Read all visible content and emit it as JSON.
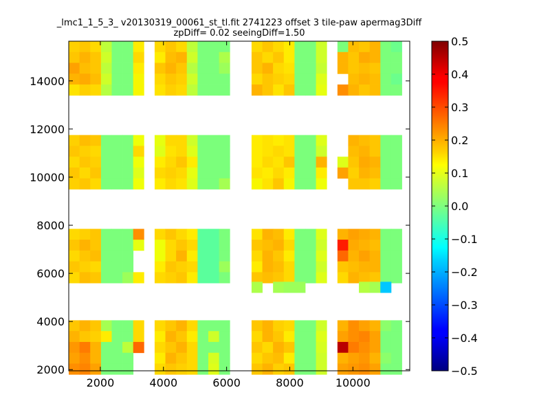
{
  "chart_data": {
    "type": "heatmap",
    "title": "_lmc1_1_5_3_ v20130319_00061_st_tl.fit 2741223 offset 3 tile-paw apermag3Diff",
    "subtitle": "zpDiff= 0.02 seeingDiff=1.50",
    "xlabel": "",
    "ylabel": "",
    "xlim": [
      1000,
      11800
    ],
    "ylim": [
      1950,
      15650
    ],
    "x_ticks": [
      "2000",
      "4000",
      "6000",
      "8000",
      "10000"
    ],
    "y_ticks": [
      "2000",
      "4000",
      "6000",
      "8000",
      "10000",
      "12000",
      "14000"
    ],
    "colorbar": {
      "colormap": "jet",
      "vmin": -0.5,
      "vmax": 0.5,
      "ticks": [
        "0.5",
        "0.4",
        "0.3",
        "0.2",
        "0.1",
        "0.0",
        "−0.1",
        "−0.2",
        "−0.3",
        "−0.4",
        "−0.5"
      ]
    },
    "cell_size": [
      340,
      450
    ],
    "x_cells": [
      1170,
      1510,
      1850,
      2190,
      2530,
      2870,
      3210,
      3890,
      4230,
      4570,
      4910,
      5250,
      5590,
      5930,
      6960,
      7300,
      7640,
      7980,
      8320,
      8660,
      9000,
      9680,
      10020,
      10360,
      10700,
      11040,
      11380
    ],
    "grid": [
      {
        "y": 15425,
        "values": [
          0.19,
          0.2,
          0.18,
          0.08,
          0.0,
          0.0,
          0.16,
          0.18,
          0.2,
          0.18,
          0.08,
          0.0,
          0.0,
          0.0,
          0.18,
          0.2,
          0.18,
          0.16,
          0.0,
          0.0,
          0.1,
          0.0,
          0.21,
          0.2,
          0.22,
          0.0,
          -0.02
        ]
      },
      {
        "y": 14975,
        "values": [
          0.2,
          0.22,
          0.2,
          0.1,
          0.0,
          0.0,
          0.18,
          0.16,
          0.21,
          0.22,
          0.1,
          0.0,
          0.0,
          0.06,
          0.2,
          0.18,
          0.2,
          0.16,
          0.0,
          0.0,
          0.1,
          0.22,
          0.2,
          0.23,
          0.22,
          0.0,
          0.0
        ]
      },
      {
        "y": 14525,
        "values": [
          0.24,
          0.21,
          0.2,
          0.08,
          0.0,
          0.0,
          0.16,
          0.2,
          0.22,
          0.2,
          0.07,
          0.0,
          0.0,
          0.04,
          0.2,
          0.22,
          0.18,
          0.17,
          0.0,
          0.0,
          0.09,
          0.22,
          0.2,
          0.21,
          0.2,
          0.0,
          0.0
        ]
      },
      {
        "y": 14075,
        "values": [
          0.22,
          0.23,
          0.21,
          0.1,
          0.0,
          0.0,
          0.15,
          0.18,
          0.2,
          0.19,
          0.1,
          0.0,
          0.0,
          0.0,
          0.18,
          0.2,
          0.19,
          0.18,
          0.0,
          0.0,
          0.12,
          null,
          0.21,
          0.22,
          0.21,
          0.0,
          -0.02
        ]
      },
      {
        "y": 13625,
        "values": [
          0.17,
          0.19,
          0.18,
          0.07,
          0.0,
          0.0,
          0.15,
          0.17,
          0.19,
          0.18,
          0.08,
          0.0,
          0.0,
          0.0,
          0.22,
          0.2,
          0.17,
          0.2,
          0.0,
          0.0,
          0.13,
          0.26,
          0.22,
          0.2,
          0.21,
          0.0,
          0.0
        ]
      },
      {
        "y": 11525,
        "values": [
          0.19,
          0.21,
          0.2,
          0.0,
          0.0,
          0.0,
          0.14,
          0.13,
          0.18,
          0.18,
          0.1,
          0.0,
          0.0,
          0.0,
          0.16,
          0.17,
          0.16,
          0.17,
          0.0,
          0.0,
          0.12,
          null,
          0.22,
          0.21,
          0.2,
          0.0,
          0.0
        ]
      },
      {
        "y": 11075,
        "values": [
          0.2,
          0.19,
          0.18,
          0.0,
          0.0,
          0.0,
          0.18,
          0.12,
          0.17,
          0.18,
          0.12,
          0.0,
          0.0,
          0.0,
          0.16,
          0.17,
          0.18,
          0.17,
          0.0,
          0.0,
          0.1,
          null,
          0.21,
          0.22,
          0.2,
          0.0,
          0.0
        ]
      },
      {
        "y": 10625,
        "values": [
          0.18,
          0.2,
          0.19,
          0.0,
          0.0,
          0.0,
          0.14,
          0.16,
          0.18,
          0.2,
          0.16,
          0.0,
          0.0,
          0.0,
          0.16,
          0.18,
          0.17,
          0.2,
          0.0,
          0.0,
          0.22,
          0.12,
          0.2,
          0.23,
          0.22,
          0.0,
          0.0
        ]
      },
      {
        "y": 10175,
        "values": [
          0.2,
          0.18,
          0.2,
          0.0,
          0.0,
          0.0,
          0.12,
          0.18,
          0.19,
          0.18,
          0.13,
          0.0,
          0.0,
          0.0,
          0.17,
          0.16,
          0.18,
          0.16,
          0.0,
          0.0,
          0.16,
          0.24,
          0.19,
          0.22,
          0.21,
          0.0,
          0.0
        ]
      },
      {
        "y": 9725,
        "values": [
          0.19,
          0.2,
          0.18,
          0.0,
          0.0,
          0.0,
          0.14,
          0.16,
          0.18,
          0.17,
          0.12,
          0.0,
          0.0,
          0.05,
          0.15,
          0.17,
          0.2,
          0.15,
          0.0,
          0.0,
          0.14,
          null,
          0.2,
          0.2,
          0.19,
          0.0,
          0.0
        ]
      },
      {
        "y": 7625,
        "values": [
          0.18,
          0.19,
          0.2,
          0.0,
          0.0,
          0.0,
          0.26,
          0.18,
          0.2,
          0.18,
          0.16,
          -0.04,
          -0.04,
          0.0,
          0.17,
          0.22,
          0.21,
          0.16,
          0.0,
          0.0,
          0.12,
          0.22,
          0.24,
          0.23,
          0.22,
          0.0,
          0.0
        ]
      },
      {
        "y": 7175,
        "values": [
          0.2,
          0.22,
          0.2,
          0.0,
          0.0,
          0.0,
          0.13,
          0.14,
          0.18,
          0.2,
          0.18,
          -0.04,
          -0.04,
          0.0,
          0.2,
          0.21,
          0.22,
          0.18,
          0.0,
          0.0,
          0.1,
          0.38,
          0.23,
          0.22,
          0.21,
          0.0,
          0.0
        ]
      },
      {
        "y": 6725,
        "values": [
          0.18,
          0.2,
          0.21,
          0.0,
          0.0,
          0.0,
          null,
          0.14,
          0.18,
          0.22,
          0.16,
          -0.04,
          -0.04,
          0.0,
          0.18,
          0.22,
          0.2,
          0.16,
          0.0,
          0.0,
          0.12,
          0.3,
          0.22,
          0.24,
          0.22,
          0.0,
          0.0
        ]
      },
      {
        "y": 6275,
        "values": [
          0.2,
          0.19,
          0.18,
          0.0,
          0.0,
          0.0,
          null,
          0.16,
          0.2,
          0.19,
          0.18,
          -0.04,
          -0.04,
          0.04,
          0.16,
          0.22,
          0.21,
          0.18,
          0.0,
          0.0,
          0.1,
          0.2,
          0.21,
          0.22,
          0.22,
          0.0,
          0.0
        ]
      },
      {
        "y": 5825,
        "values": [
          0.18,
          0.21,
          0.2,
          0.0,
          0.0,
          0.04,
          0.16,
          0.18,
          0.19,
          0.2,
          0.16,
          -0.04,
          -0.04,
          0.0,
          0.2,
          0.21,
          0.2,
          0.18,
          0.0,
          0.0,
          0.12,
          0.18,
          0.22,
          0.21,
          0.2,
          0.0,
          0.0
        ]
      },
      {
        "y": 5425,
        "values": [
          null,
          null,
          null,
          null,
          null,
          null,
          null,
          null,
          null,
          null,
          null,
          null,
          null,
          null,
          0.06,
          null,
          0.05,
          0.04,
          0.04,
          null,
          null,
          null,
          null,
          0.07,
          0.05,
          -0.18,
          null
        ]
      },
      {
        "y": 3825,
        "values": [
          0.2,
          0.22,
          0.2,
          0.05,
          0.0,
          0.0,
          0.18,
          0.18,
          0.2,
          0.22,
          0.18,
          0.0,
          0.0,
          0.0,
          0.2,
          0.22,
          0.19,
          0.18,
          0.0,
          0.0,
          0.1,
          0.22,
          0.26,
          0.24,
          0.22,
          0.02,
          0.0
        ]
      },
      {
        "y": 3375,
        "values": [
          0.22,
          0.2,
          0.19,
          0.16,
          0.0,
          0.0,
          0.18,
          0.16,
          0.22,
          0.2,
          0.16,
          0.0,
          0.1,
          0.0,
          0.18,
          0.22,
          0.2,
          0.16,
          0.0,
          0.0,
          0.12,
          0.24,
          0.26,
          0.27,
          0.24,
          0.0,
          0.0
        ]
      },
      {
        "y": 2925,
        "values": [
          0.25,
          0.28,
          0.22,
          0.0,
          0.0,
          0.08,
          0.3,
          0.18,
          0.2,
          0.22,
          0.18,
          0.0,
          0.0,
          0.0,
          0.2,
          0.18,
          0.22,
          0.2,
          0.0,
          0.0,
          0.11,
          0.45,
          0.28,
          0.26,
          0.24,
          0.0,
          0.0
        ]
      },
      {
        "y": 2475,
        "values": [
          0.24,
          0.26,
          0.22,
          0.0,
          0.0,
          0.0,
          null,
          0.16,
          0.22,
          0.2,
          0.18,
          0.0,
          0.11,
          0.0,
          0.18,
          0.2,
          0.21,
          0.16,
          0.0,
          0.0,
          0.1,
          0.22,
          0.24,
          0.25,
          0.22,
          0.02,
          0.0
        ]
      },
      {
        "y": 2025,
        "values": [
          0.26,
          0.27,
          0.24,
          0.0,
          0.0,
          0.0,
          null,
          0.18,
          0.2,
          0.19,
          0.18,
          0.0,
          0.12,
          0.0,
          0.2,
          0.22,
          0.19,
          0.2,
          0.0,
          0.0,
          0.1,
          0.24,
          0.25,
          0.26,
          0.24,
          0.0,
          0.0
        ]
      }
    ]
  }
}
